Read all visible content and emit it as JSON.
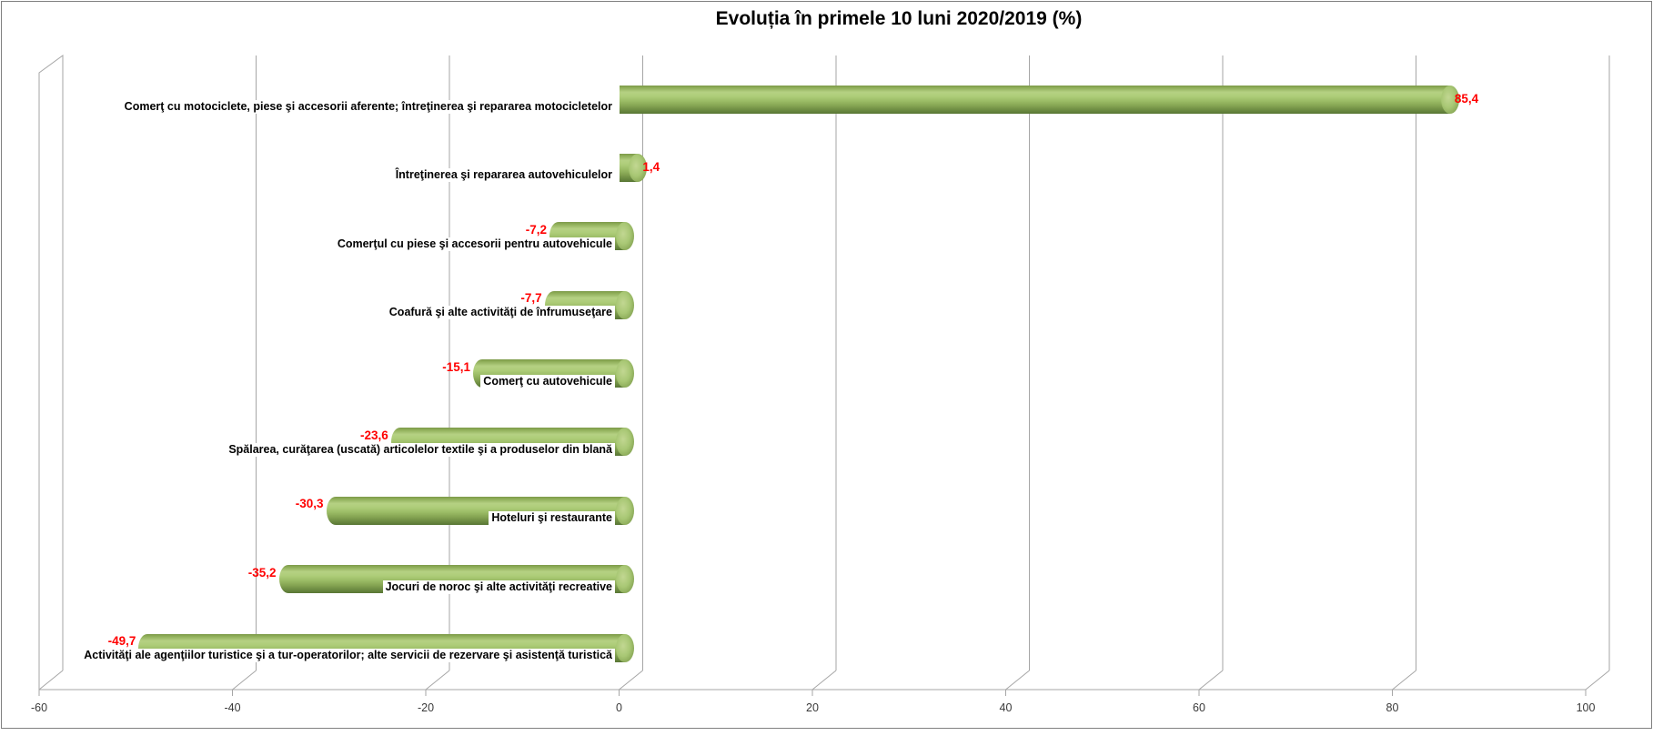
{
  "chart_data": {
    "type": "bar",
    "subtype": "3d-cylinder-horizontal",
    "title": "Evoluția în primele 10 luni 2020/2019 (%)",
    "categories": [
      "Comerţ cu motociclete, piese şi accesorii aferente; întreţinerea şi repararea motocicletelor",
      "Întreţinerea şi repararea autovehiculelor",
      "Comerţul cu piese şi accesorii pentru autovehicule",
      "Coafură şi alte activităţi de înfrumuseţare",
      "Comerţ cu autovehicule",
      "Spălarea, curăţarea (uscată) articolelor textile şi a produselor din blană",
      "Hoteluri şi restaurante",
      "Jocuri de noroc şi alte activităţi recreative",
      "Activităţi ale agenţiilor turistice şi a tur-operatorilor; alte servicii de rezervare şi asistenţă turistică"
    ],
    "values": [
      85.4,
      1.4,
      -7.2,
      -7.7,
      -15.1,
      -23.6,
      -30.3,
      -35.2,
      -49.7
    ],
    "value_labels": [
      "85,4",
      "1,4",
      "-7,2",
      "-7,7",
      "-15,1",
      "-23,6",
      "-30,3",
      "-35,2",
      "-49,7"
    ],
    "x_ticks": [
      -60,
      -40,
      -20,
      0,
      20,
      40,
      60,
      80,
      100
    ],
    "x_tick_labels": [
      "-60",
      "-40",
      "-20",
      "0",
      "20",
      "40",
      "60",
      "80",
      "100"
    ],
    "xlim": [
      -60,
      100
    ],
    "grid": true,
    "legend": "none",
    "bar_color": "#9BBB59",
    "value_label_color": "#FF0000",
    "grid_line_color": "#A6A6A6",
    "border_color": "#808080",
    "background_color": "#FFFFFF"
  }
}
